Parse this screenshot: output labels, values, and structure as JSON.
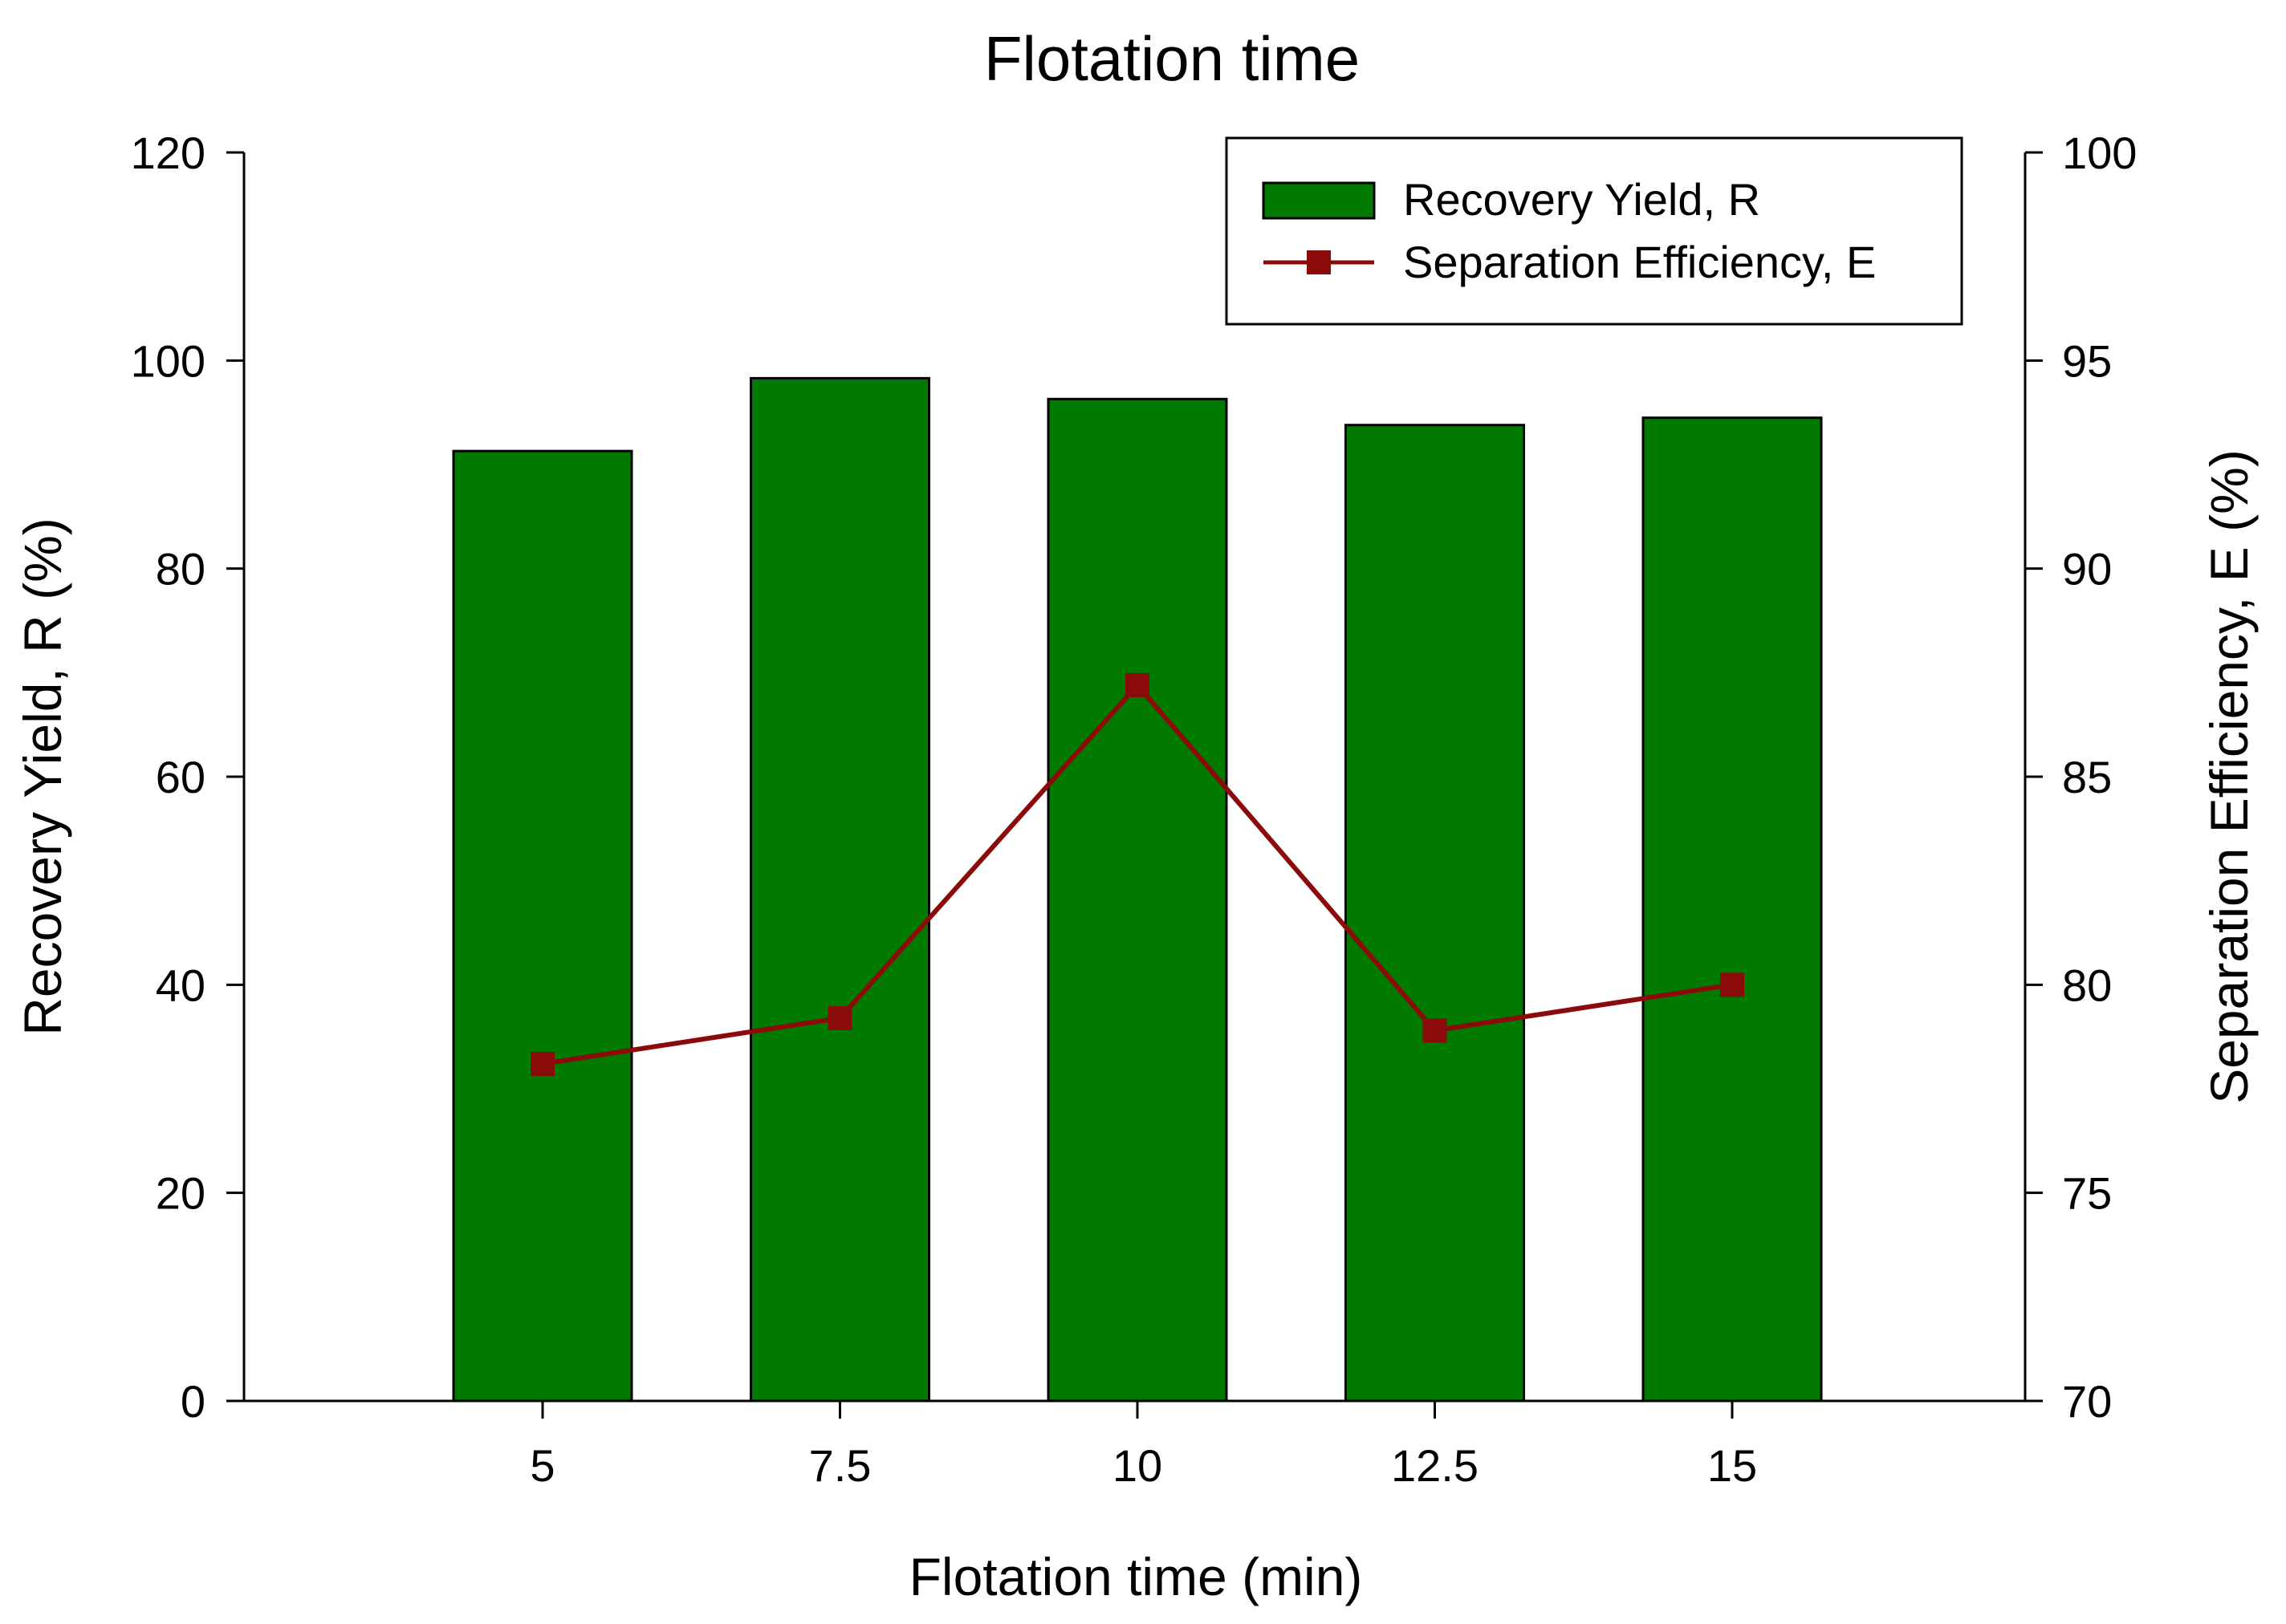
{
  "chart_data": {
    "type": "bar",
    "title": "Flotation time",
    "xlabel": "Flotation time (min)",
    "ylabel": "Recovery Yield, R (%)",
    "y2label": "Separation Efficiency, E (%)",
    "categories": [
      "5",
      "7.5",
      "10",
      "12.5",
      "15"
    ],
    "ylim": [
      0,
      120
    ],
    "y2lim": [
      70,
      100
    ],
    "yticks": [
      "0",
      "20",
      "40",
      "60",
      "80",
      "100",
      "120"
    ],
    "y2ticks": [
      "70",
      "75",
      "80",
      "85",
      "90",
      "95",
      "100"
    ],
    "grid": false,
    "legend_position": "top-right",
    "series": [
      {
        "name": "Recovery Yield, R",
        "type": "bar",
        "axis": "left",
        "color": "#007a00",
        "values": [
          91.3,
          98.3,
          96.3,
          93.8,
          94.5
        ]
      },
      {
        "name": "Separation Efficiency, E",
        "type": "line",
        "axis": "right",
        "marker": "square",
        "color": "#8b0a0a",
        "values": [
          78.1,
          79.2,
          87.2,
          78.9,
          80.0
        ]
      }
    ]
  }
}
